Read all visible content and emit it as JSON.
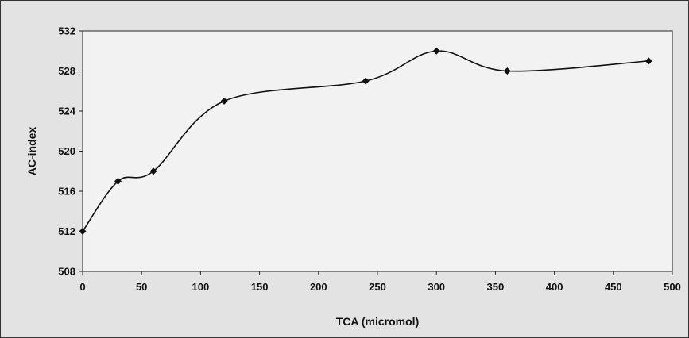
{
  "chart_data": {
    "type": "line",
    "title": "",
    "xlabel": "TCA (micromol)",
    "ylabel": "AC-index",
    "xlim": [
      0,
      500
    ],
    "ylim": [
      508,
      532
    ],
    "x_ticks": [
      0,
      50,
      100,
      150,
      200,
      250,
      300,
      350,
      400,
      450,
      500
    ],
    "y_ticks": [
      508,
      512,
      516,
      520,
      524,
      528,
      532
    ],
    "grid": false,
    "legend": "none",
    "smooth": true,
    "series": [
      {
        "x": [
          0,
          30,
          60,
          120,
          240,
          300,
          360,
          480
        ],
        "y": [
          512,
          517,
          518,
          525,
          527,
          530,
          528,
          529
        ],
        "color": "#111111",
        "marker": "diamond"
      }
    ],
    "plot_background": "#f2f2f2"
  }
}
